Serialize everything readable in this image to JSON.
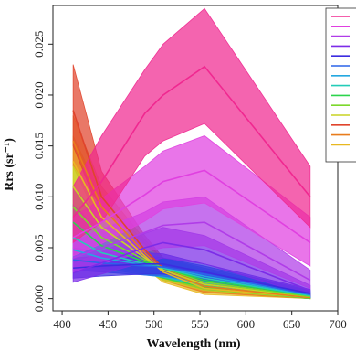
{
  "chart_data": {
    "type": "line",
    "title": "",
    "xlabel": "Wavelength (nm)",
    "ylabel": "Rrs (sr⁻¹)",
    "x": [
      412,
      443,
      490,
      510,
      555,
      670
    ],
    "xlim": [
      390,
      700
    ],
    "ylim": [
      -0.0012,
      0.0288
    ],
    "xticks": [
      "400",
      "450",
      "500",
      "550",
      "600",
      "650",
      "700"
    ],
    "yticks": [
      "0.000",
      "0.005",
      "0.010",
      "0.015",
      "0.020",
      "0.025"
    ],
    "grid": false,
    "legend": "top-right",
    "bands_shaded": true,
    "series": [
      {
        "color": "#e8b820",
        "mean": [
          0.0135,
          0.008,
          0.0042,
          0.0026,
          0.001,
          0.0001
        ],
        "upper": [
          0.016,
          0.01,
          0.0055,
          0.0036,
          0.0017,
          0.0004
        ],
        "lower": [
          0.011,
          0.006,
          0.003,
          0.0016,
          0.0004,
          0.0
        ]
      },
      {
        "color": "#e87c1c",
        "mean": [
          0.0155,
          0.009,
          0.0045,
          0.0028,
          0.0012,
          0.0001
        ],
        "upper": [
          0.018,
          0.011,
          0.0058,
          0.0038,
          0.002,
          0.0004
        ],
        "lower": [
          0.013,
          0.007,
          0.0032,
          0.0018,
          0.0006,
          0.0
        ]
      },
      {
        "color": "#e0442c",
        "mean": [
          0.0185,
          0.01,
          0.0048,
          0.003,
          0.0014,
          0.0002
        ],
        "upper": [
          0.023,
          0.0125,
          0.0062,
          0.004,
          0.0022,
          0.0005
        ],
        "lower": [
          0.015,
          0.008,
          0.0034,
          0.002,
          0.0008,
          0.0
        ]
      },
      {
        "color": "#c8d424",
        "mean": [
          0.011,
          0.007,
          0.004,
          0.0028,
          0.0014,
          0.0002
        ],
        "upper": [
          0.013,
          0.0088,
          0.0052,
          0.0038,
          0.0022,
          0.0005
        ],
        "lower": [
          0.009,
          0.0054,
          0.0028,
          0.0018,
          0.0008,
          0.0
        ]
      },
      {
        "color": "#7cd82c",
        "mean": [
          0.009,
          0.006,
          0.0038,
          0.003,
          0.0016,
          0.0002
        ],
        "upper": [
          0.011,
          0.0076,
          0.005,
          0.004,
          0.0024,
          0.0005
        ],
        "lower": [
          0.0072,
          0.0046,
          0.0026,
          0.002,
          0.0009,
          0.0
        ]
      },
      {
        "color": "#2cd44c",
        "mean": [
          0.0075,
          0.0052,
          0.0036,
          0.003,
          0.0018,
          0.0003
        ],
        "upper": [
          0.0092,
          0.0066,
          0.0048,
          0.004,
          0.0026,
          0.0006
        ],
        "lower": [
          0.0058,
          0.004,
          0.0025,
          0.002,
          0.0011,
          0.0
        ]
      },
      {
        "color": "#24ccb8",
        "mean": [
          0.006,
          0.0045,
          0.0034,
          0.003,
          0.002,
          0.0003
        ],
        "upper": [
          0.0076,
          0.0058,
          0.0046,
          0.004,
          0.0028,
          0.0006
        ],
        "lower": [
          0.0046,
          0.0034,
          0.0024,
          0.0021,
          0.0012,
          0.0001
        ]
      },
      {
        "color": "#24a8e0",
        "mean": [
          0.0048,
          0.004,
          0.0033,
          0.0031,
          0.0022,
          0.0004
        ],
        "upper": [
          0.0062,
          0.0052,
          0.0044,
          0.004,
          0.003,
          0.0007
        ],
        "lower": [
          0.0036,
          0.003,
          0.0023,
          0.0021,
          0.0014,
          0.0001
        ]
      },
      {
        "color": "#2c64e8",
        "mean": [
          0.0038,
          0.0035,
          0.0032,
          0.0031,
          0.0024,
          0.0004
        ],
        "upper": [
          0.005,
          0.0046,
          0.0042,
          0.004,
          0.0032,
          0.0008
        ],
        "lower": [
          0.0028,
          0.0026,
          0.0023,
          0.0022,
          0.0016,
          0.0001
        ]
      },
      {
        "color": "#3c2ce0",
        "mean": [
          0.003,
          0.0032,
          0.0034,
          0.0034,
          0.0026,
          0.0005
        ],
        "upper": [
          0.004,
          0.0042,
          0.0045,
          0.0044,
          0.0034,
          0.0009
        ],
        "lower": [
          0.002,
          0.0022,
          0.0024,
          0.0024,
          0.0018,
          0.0001
        ]
      },
      {
        "color": "#7c2ce8",
        "mean": [
          0.0025,
          0.0035,
          0.005,
          0.0055,
          0.0048,
          0.0008
        ],
        "upper": [
          0.0034,
          0.0046,
          0.0064,
          0.007,
          0.0062,
          0.0013
        ],
        "lower": [
          0.0016,
          0.0024,
          0.0036,
          0.004,
          0.0034,
          0.0003
        ]
      },
      {
        "color": "#b03ce8",
        "mean": [
          0.004,
          0.005,
          0.0065,
          0.0072,
          0.0075,
          0.0018
        ],
        "upper": [
          0.0056,
          0.0068,
          0.0085,
          0.0095,
          0.01,
          0.0028
        ],
        "lower": [
          0.0026,
          0.0034,
          0.0046,
          0.005,
          0.0052,
          0.001
        ]
      },
      {
        "color": "#e040e0",
        "mean": [
          0.006,
          0.0075,
          0.0102,
          0.0115,
          0.0126,
          0.0055
        ],
        "upper": [
          0.008,
          0.0098,
          0.013,
          0.0145,
          0.016,
          0.008
        ],
        "lower": [
          0.0042,
          0.0054,
          0.0076,
          0.0088,
          0.0094,
          0.0032
        ]
      },
      {
        "color": "#f02890",
        "mean": [
          0.008,
          0.0115,
          0.0182,
          0.02,
          0.0228,
          0.01
        ],
        "upper": [
          0.011,
          0.016,
          0.0225,
          0.025,
          0.0285,
          0.013
        ],
        "lower": [
          0.0055,
          0.0075,
          0.014,
          0.0155,
          0.0172,
          0.007
        ]
      }
    ]
  }
}
